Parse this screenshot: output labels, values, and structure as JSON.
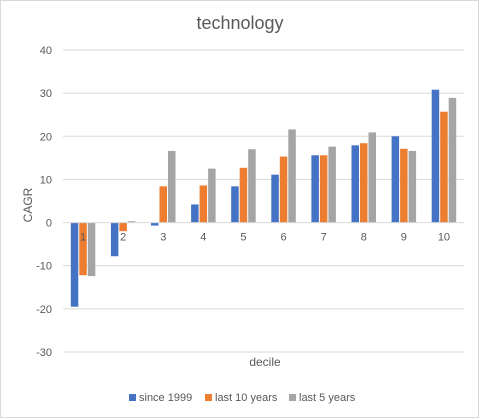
{
  "chart_data": {
    "type": "bar",
    "title": "technology",
    "xlabel": "decile",
    "ylabel": "CAGR",
    "categories": [
      "1",
      "2",
      "3",
      "4",
      "5",
      "6",
      "7",
      "8",
      "9",
      "10"
    ],
    "series": [
      {
        "name": "since 1999",
        "color": "#4472C4",
        "values": [
          -19.5,
          -7.8,
          -0.7,
          4.2,
          8.4,
          11.1,
          15.6,
          17.9,
          20.0,
          30.8
        ]
      },
      {
        "name": "last 10 years",
        "color": "#ED7D31",
        "values": [
          -12.2,
          -2.0,
          8.4,
          8.6,
          12.7,
          15.3,
          15.6,
          18.4,
          17.1,
          25.7
        ]
      },
      {
        "name": "last 5 years",
        "color": "#A5A5A5",
        "values": [
          -12.4,
          0.3,
          16.6,
          12.5,
          17.0,
          21.6,
          17.6,
          20.9,
          16.6,
          28.9
        ]
      }
    ],
    "ylim": [
      -30,
      40
    ],
    "yticks": [
      -30,
      -20,
      -10,
      0,
      10,
      20,
      30,
      40
    ],
    "grid": true,
    "legend_position": "bottom"
  }
}
